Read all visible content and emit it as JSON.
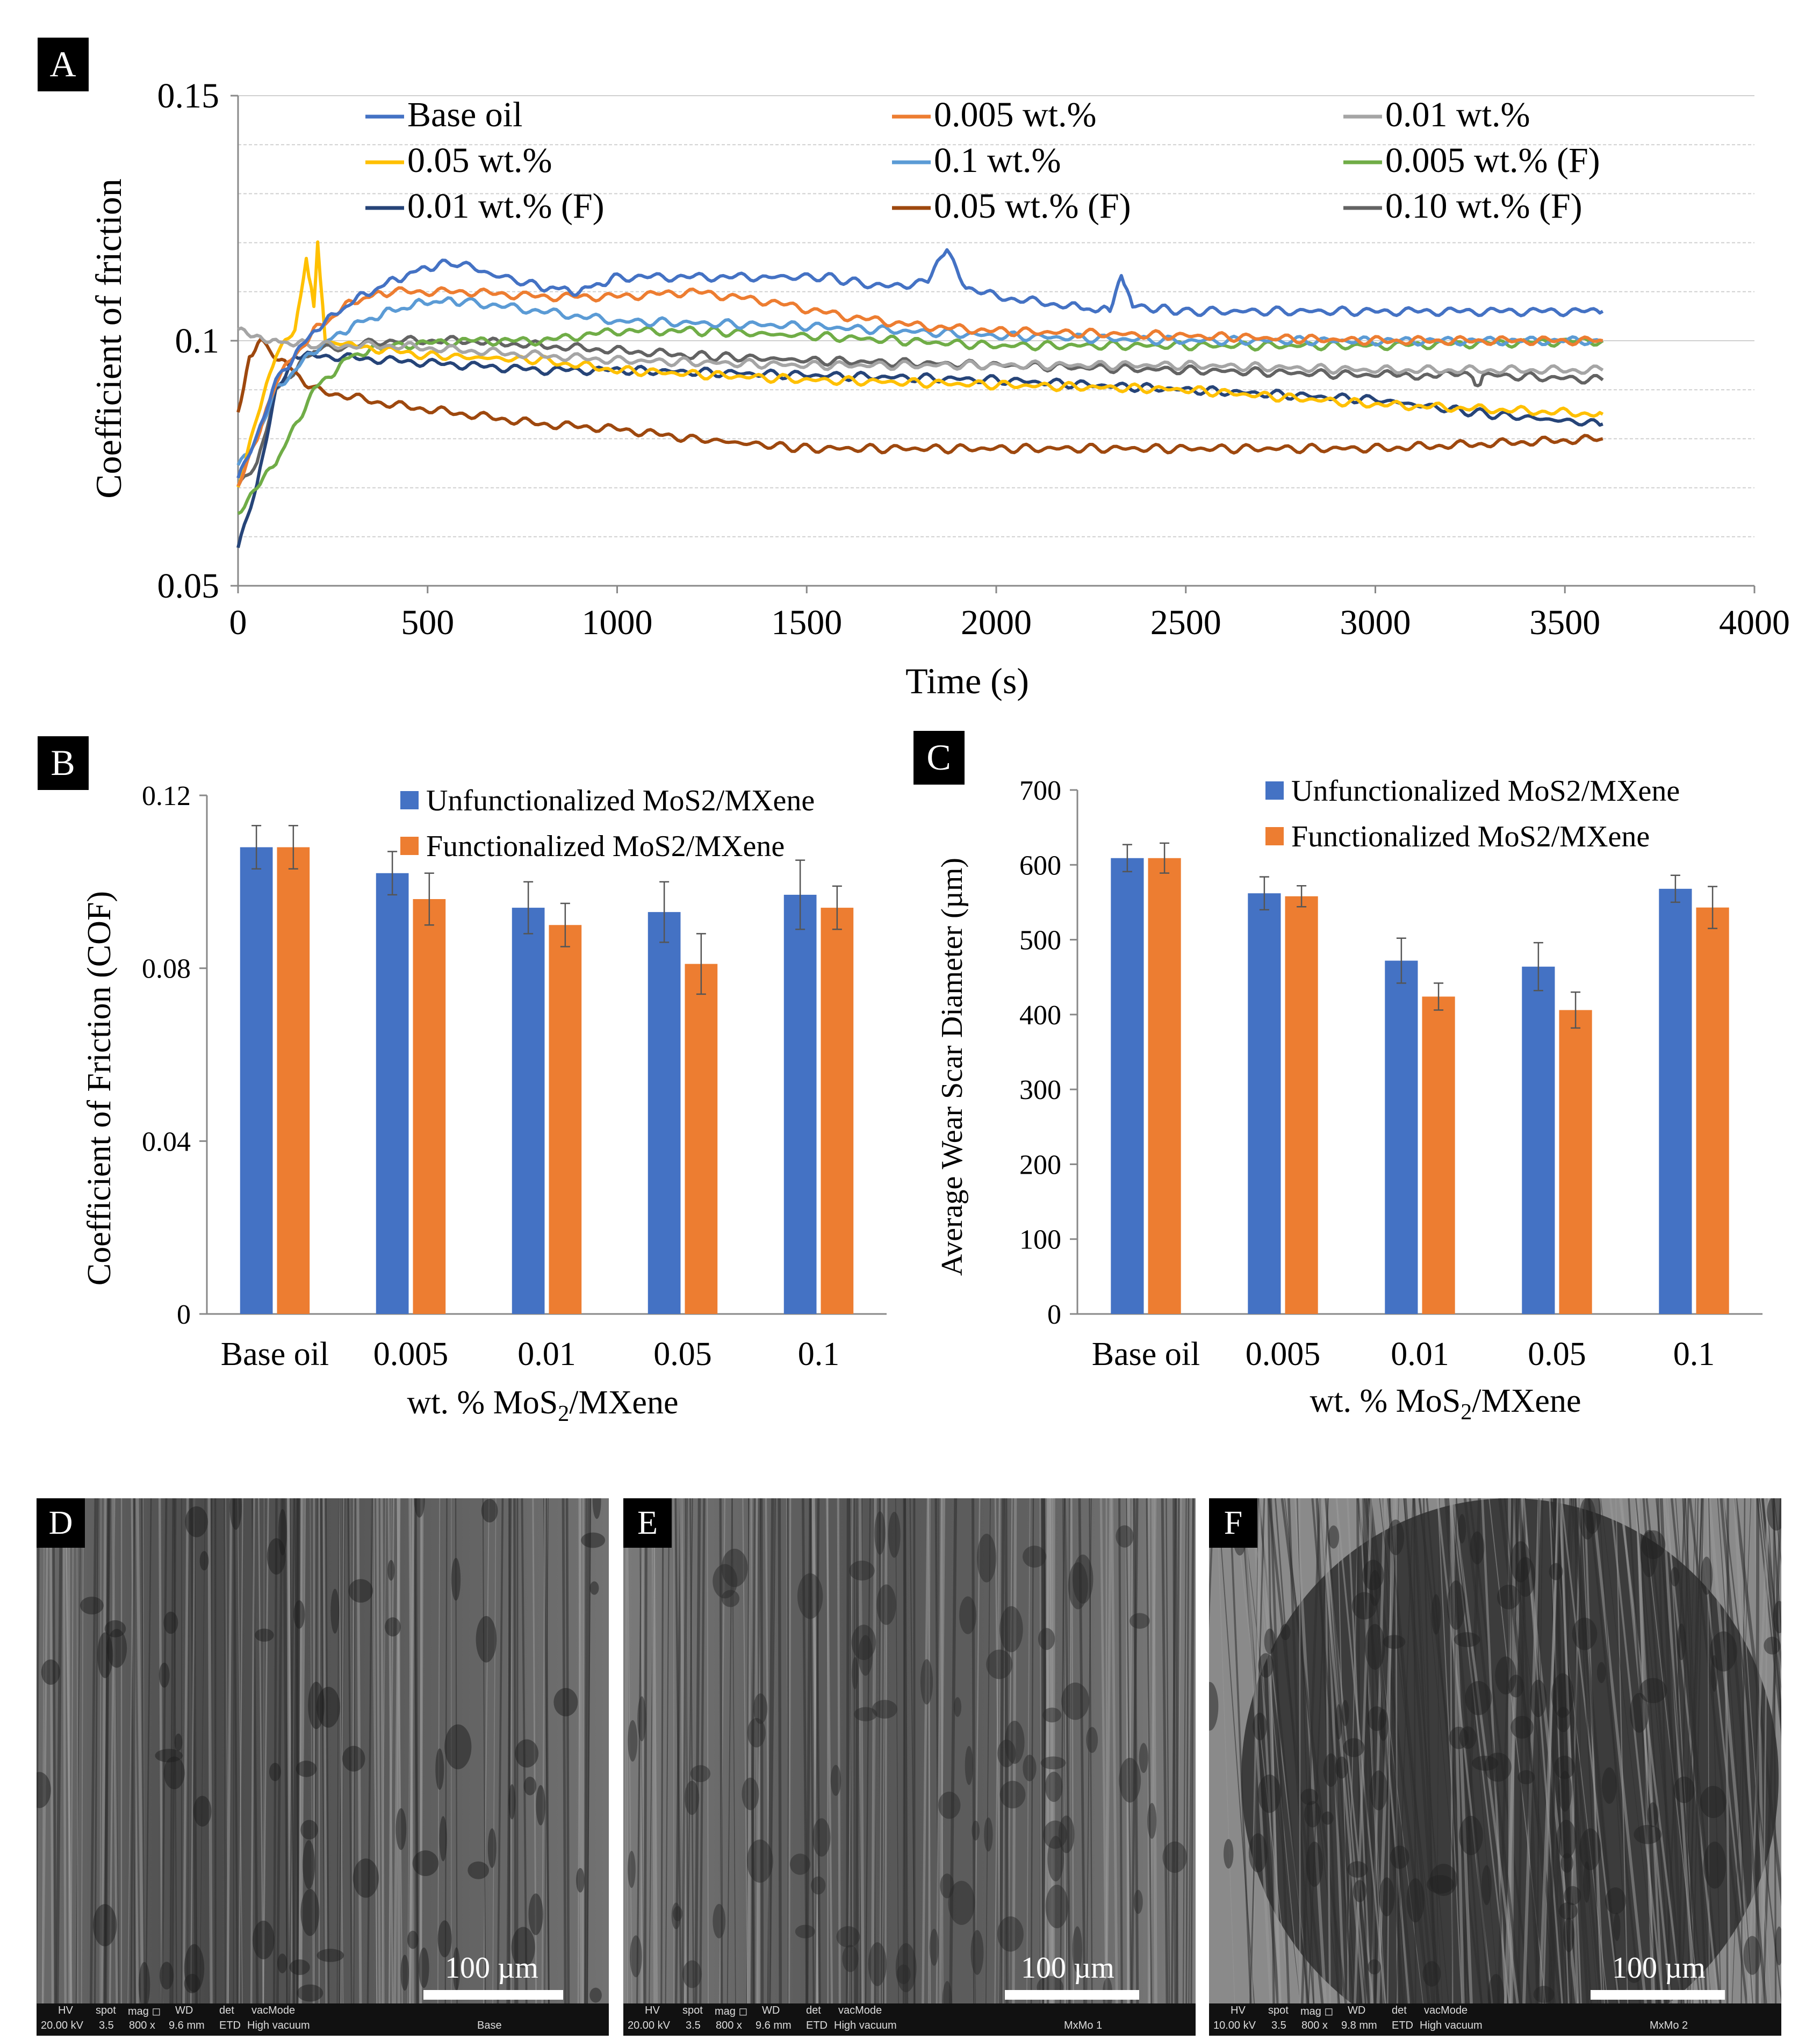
{
  "colors": {
    "blue": "#4472c4",
    "orange": "#ed7d31",
    "gray": "#a5a5a5",
    "yellow": "#ffc000",
    "lightblue": "#5b9bd5",
    "green": "#70ad47",
    "navy": "#264478",
    "brown": "#9e480e",
    "darkgray": "#636363"
  },
  "chart_data": [
    {
      "panel": "A",
      "type": "line",
      "xlabel": "Time (s)",
      "ylabel": "Coefficient of friction",
      "xlim": [
        0,
        4000
      ],
      "ylim": [
        0.05,
        0.15
      ],
      "xticks": [
        "0",
        "500",
        "1000",
        "1500",
        "2000",
        "2500",
        "3000",
        "3500",
        "4000"
      ],
      "yticks": [
        "0.05",
        "0.1",
        "0.15"
      ],
      "series": [
        {
          "name": "Base oil",
          "color": "#4472c4",
          "x": [
            0,
            50,
            100,
            200,
            300,
            400,
            500,
            570,
            650,
            800,
            900,
            1000,
            1200,
            1400,
            1550,
            1700,
            1820,
            1870,
            1920,
            2000,
            2200,
            2300,
            2330,
            2360,
            2500,
            3000,
            3600
          ],
          "y": [
            0.072,
            0.08,
            0.092,
            0.102,
            0.108,
            0.112,
            0.115,
            0.116,
            0.114,
            0.111,
            0.11,
            0.113,
            0.113,
            0.113,
            0.113,
            0.111,
            0.112,
            0.119,
            0.111,
            0.109,
            0.107,
            0.106,
            0.114,
            0.107,
            0.106,
            0.106,
            0.106
          ]
        },
        {
          "name": "0.005 wt.%",
          "color": "#ed7d31",
          "x": [
            0,
            50,
            100,
            200,
            300,
            400,
            600,
            800,
            1000,
            1200,
            1400,
            1600,
            1800,
            2000,
            2500,
            3000,
            3600
          ],
          "y": [
            0.07,
            0.08,
            0.092,
            0.102,
            0.108,
            0.11,
            0.11,
            0.109,
            0.109,
            0.11,
            0.108,
            0.105,
            0.103,
            0.102,
            0.101,
            0.1,
            0.1
          ]
        },
        {
          "name": "0.01 wt.%",
          "color": "#a5a5a5",
          "x": [
            0,
            50,
            100,
            200,
            400,
            600,
            800,
            1000,
            1500,
            2000,
            2500,
            3000,
            3600
          ],
          "y": [
            0.102,
            0.101,
            0.1,
            0.099,
            0.099,
            0.098,
            0.097,
            0.096,
            0.095,
            0.095,
            0.095,
            0.094,
            0.094
          ]
        },
        {
          "name": "0.05 wt.%",
          "color": "#ffc000",
          "x": [
            0,
            50,
            100,
            150,
            180,
            200,
            210,
            230,
            300,
            500,
            800,
            1000,
            1500,
            2000,
            2500,
            3000,
            3600
          ],
          "y": [
            0.07,
            0.085,
            0.097,
            0.102,
            0.116,
            0.107,
            0.12,
            0.1,
            0.099,
            0.097,
            0.096,
            0.094,
            0.092,
            0.091,
            0.09,
            0.087,
            0.085
          ]
        },
        {
          "name": "0.1 wt.%",
          "color": "#5b9bd5",
          "x": [
            0,
            50,
            100,
            200,
            300,
            400,
            500,
            600,
            800,
            1000,
            1500,
            2000,
            2500,
            3000,
            3600
          ],
          "y": [
            0.075,
            0.08,
            0.09,
            0.098,
            0.103,
            0.106,
            0.108,
            0.108,
            0.106,
            0.104,
            0.103,
            0.101,
            0.1,
            0.1,
            0.1
          ]
        },
        {
          "name": "0.005 wt.% (F)",
          "color": "#70ad47",
          "x": [
            0,
            50,
            100,
            200,
            300,
            400,
            600,
            800,
            1000,
            1200,
            1500,
            2000,
            2500,
            3000,
            3600
          ],
          "y": [
            0.065,
            0.07,
            0.075,
            0.09,
            0.097,
            0.099,
            0.1,
            0.1,
            0.102,
            0.102,
            0.101,
            0.099,
            0.099,
            0.099,
            0.1
          ]
        },
        {
          "name": "0.01 wt.% (F)",
          "color": "#264478",
          "x": [
            0,
            50,
            100,
            150,
            200,
            400,
            600,
            800,
            1000,
            1500,
            2000,
            2500,
            3000,
            3300,
            3600
          ],
          "y": [
            0.058,
            0.07,
            0.09,
            0.097,
            0.097,
            0.096,
            0.095,
            0.094,
            0.094,
            0.093,
            0.092,
            0.09,
            0.088,
            0.085,
            0.083
          ]
        },
        {
          "name": "0.05 wt.% (F)",
          "color": "#9e480e",
          "x": [
            0,
            30,
            60,
            100,
            200,
            400,
            600,
            800,
            1000,
            1200,
            1500,
            2000,
            2500,
            3000,
            3600
          ],
          "y": [
            0.085,
            0.097,
            0.1,
            0.097,
            0.09,
            0.087,
            0.085,
            0.083,
            0.082,
            0.08,
            0.078,
            0.078,
            0.078,
            0.078,
            0.08
          ]
        },
        {
          "name": "0.10 wt.% (F)",
          "color": "#636363",
          "x": [
            0,
            50,
            100,
            200,
            400,
            600,
            800,
            1000,
            1200,
            1500,
            2000,
            2500,
            3000,
            3250,
            3270,
            3290,
            3600
          ],
          "y": [
            0.07,
            0.075,
            0.09,
            0.098,
            0.1,
            0.1,
            0.099,
            0.098,
            0.097,
            0.096,
            0.095,
            0.094,
            0.093,
            0.093,
            0.09,
            0.093,
            0.092
          ]
        }
      ]
    },
    {
      "panel": "B",
      "type": "bar",
      "title": "",
      "xlabel": "wt. % MoS2/MXene",
      "xlabel_main": "wt. % MoS",
      "xlabel_sub": "2",
      "xlabel_tail": "/MXene",
      "ylabel": "Coefficient of Friction (COF)",
      "ylim": [
        0,
        0.12
      ],
      "yticks": [
        "0",
        "0.04",
        "0.08",
        "0.12"
      ],
      "categories": [
        "Base oil",
        "0.005",
        "0.01",
        "0.05",
        "0.1"
      ],
      "series": [
        {
          "name": "Unfunctionalized MoS2/MXene",
          "color": "#4472c4",
          "values": [
            0.108,
            0.102,
            0.094,
            0.093,
            0.097
          ],
          "errors": [
            0.005,
            0.005,
            0.006,
            0.007,
            0.008
          ]
        },
        {
          "name": "Functionalized MoS2/MXene",
          "color": "#ed7d31",
          "values": [
            0.108,
            0.096,
            0.09,
            0.081,
            0.094
          ],
          "errors": [
            0.005,
            0.006,
            0.005,
            0.007,
            0.005
          ]
        }
      ]
    },
    {
      "panel": "C",
      "type": "bar",
      "title": "",
      "xlabel": "wt. % MoS2/MXene",
      "xlabel_main": "wt. % MoS",
      "xlabel_sub": "2",
      "xlabel_tail": "/MXene",
      "ylabel": "Average Wear Scar Diameter (µm)",
      "ylim": [
        0,
        700
      ],
      "yticks": [
        "0",
        "100",
        "200",
        "300",
        "400",
        "500",
        "600",
        "700"
      ],
      "categories": [
        "Base oil",
        "0.005",
        "0.01",
        "0.05",
        "0.1"
      ],
      "series": [
        {
          "name": "Unfunctionalized MoS2/MXene",
          "color": "#4472c4",
          "values": [
            609,
            562,
            472,
            464,
            568
          ],
          "errors": [
            18,
            22,
            30,
            32,
            18
          ]
        },
        {
          "name": "Functionalized MoS2/MXene",
          "color": "#ed7d31",
          "values": [
            609,
            558,
            424,
            406,
            543
          ],
          "errors": [
            20,
            14,
            18,
            24,
            28
          ]
        }
      ]
    }
  ],
  "sem_panels": [
    {
      "label": "D",
      "scale": "100 µm",
      "hv": "HV",
      "hv_val": "20.00 kV",
      "spot": "spot",
      "spot_val": "3.5",
      "mag": "mag ◻",
      "mag_val": "800 x",
      "wd": "WD",
      "wd_val": "9.6 mm",
      "det": "det",
      "det_val": "ETD",
      "vac": "vacMode",
      "vac_val": "High vacuum",
      "name": "Base"
    },
    {
      "label": "E",
      "scale": "100 µm",
      "hv": "HV",
      "hv_val": "20.00 kV",
      "spot": "spot",
      "spot_val": "3.5",
      "mag": "mag ◻",
      "mag_val": "800 x",
      "wd": "WD",
      "wd_val": "9.6 mm",
      "det": "det",
      "det_val": "ETD",
      "vac": "vacMode",
      "vac_val": "High vacuum",
      "name": "MxMo 1"
    },
    {
      "label": "F",
      "scale": "100 µm",
      "hv": "HV",
      "hv_val": "10.00 kV",
      "spot": "spot",
      "spot_val": "3.5",
      "mag": "mag ◻",
      "mag_val": "800 x",
      "wd": "WD",
      "wd_val": "9.8 mm",
      "det": "det",
      "det_val": "ETD",
      "vac": "vacMode",
      "vac_val": "High vacuum",
      "name": "MxMo 2"
    }
  ]
}
